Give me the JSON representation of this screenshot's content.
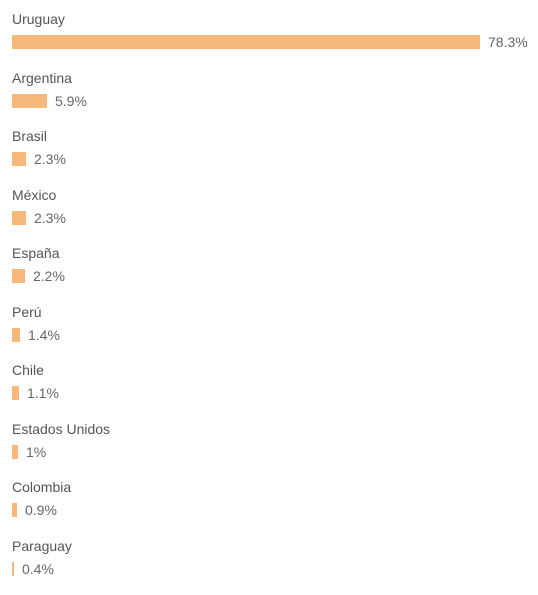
{
  "chart_data": {
    "type": "bar",
    "orientation": "horizontal",
    "categories": [
      "Uruguay",
      "Argentina",
      "Brasil",
      "México",
      "España",
      "Perú",
      "Chile",
      "Estados Unidos",
      "Colombia",
      "Paraguay"
    ],
    "values": [
      78.3,
      5.9,
      2.3,
      2.3,
      2.2,
      1.4,
      1.1,
      1,
      0.9,
      0.4
    ],
    "value_labels": [
      "78.3%",
      "5.9%",
      "2.3%",
      "2.3%",
      "2.2%",
      "1.4%",
      "1.1%",
      "1%",
      "0.9%",
      "0.4%"
    ],
    "xlim": [
      0,
      78.3
    ],
    "grid": false,
    "bar_color": "#f7b87b"
  }
}
